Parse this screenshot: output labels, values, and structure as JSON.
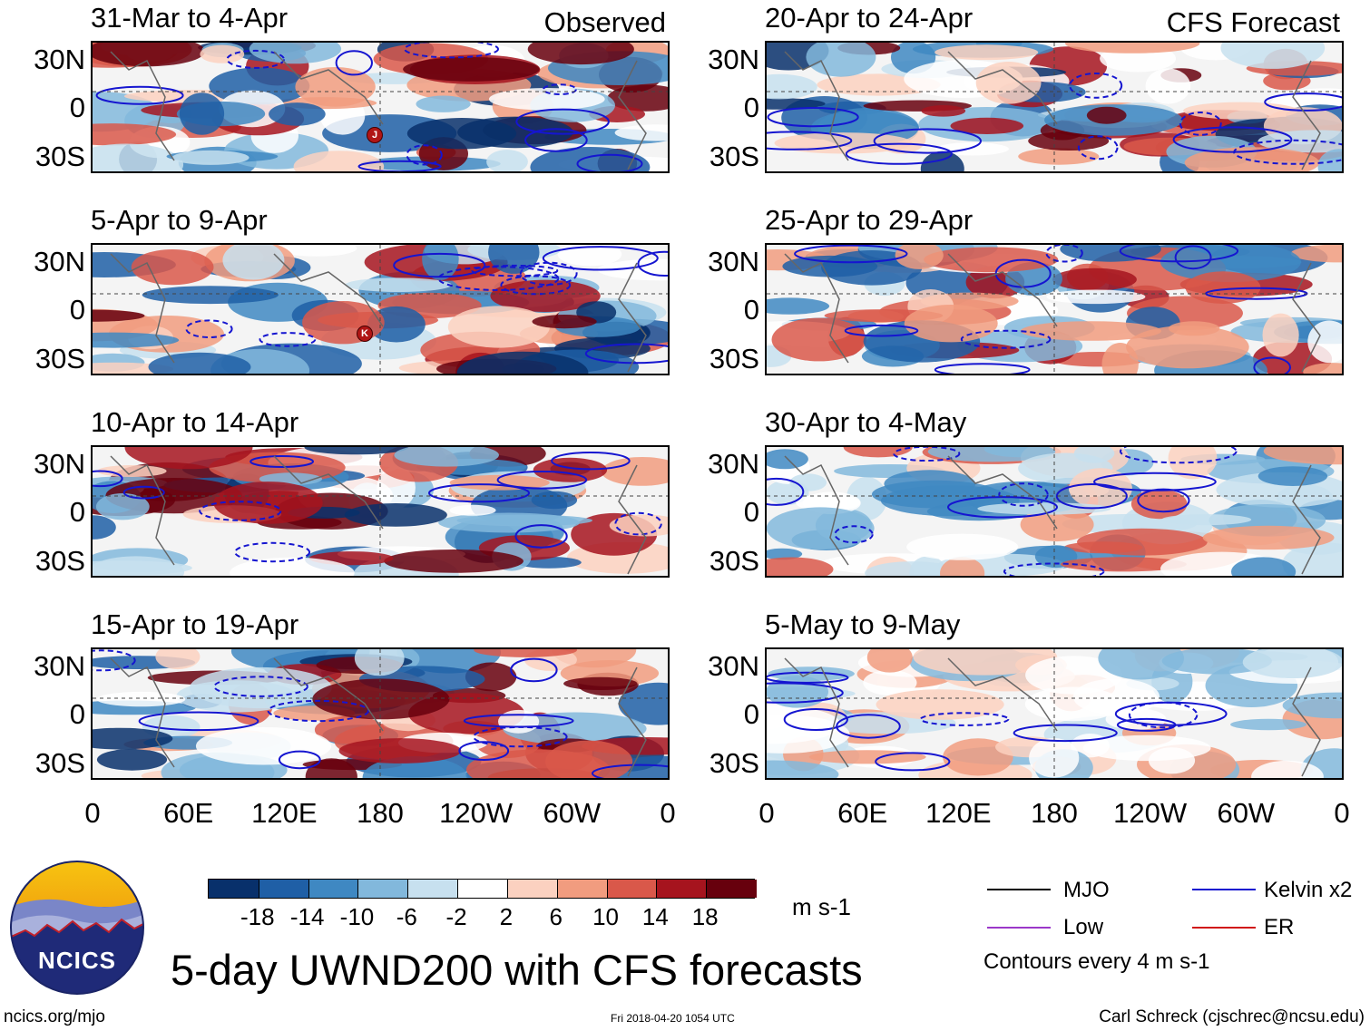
{
  "panels": [
    {
      "title": "31-Mar to 4-Apr",
      "tag": "Observed",
      "seed": 3
    },
    {
      "title": "20-Apr to 24-Apr",
      "tag": "CFS Forecast",
      "seed": 11
    },
    {
      "title": "5-Apr to 9-Apr",
      "tag": "",
      "seed": 5
    },
    {
      "title": "25-Apr to 29-Apr",
      "tag": "",
      "seed": 13
    },
    {
      "title": "10-Apr to 14-Apr",
      "tag": "",
      "seed": 7
    },
    {
      "title": "30-Apr to 4-May",
      "tag": "",
      "seed": 17
    },
    {
      "title": "15-Apr to 19-Apr",
      "tag": "",
      "seed": 9
    },
    {
      "title": "5-May to 9-May",
      "tag": "",
      "seed": 19
    }
  ],
  "storm_labels": {
    "p0": "J",
    "p2": "K"
  },
  "lat_labels": [
    "30N",
    "0",
    "30S"
  ],
  "lon_labels": [
    "0",
    "60E",
    "120E",
    "180",
    "120W",
    "60W",
    "0"
  ],
  "colorbar": {
    "labels": [
      "-18",
      "-14",
      "-10",
      "-6",
      "-2",
      "2",
      "6",
      "10",
      "14",
      "18"
    ],
    "colors": [
      "#08306b",
      "#1f5fa6",
      "#3f88c2",
      "#82b8dc",
      "#c7e0ef",
      "#ffffff",
      "#fbd1c0",
      "#f19c7f",
      "#d9584a",
      "#a6141e",
      "#67000d"
    ],
    "units": "m s-1"
  },
  "legend": {
    "items": [
      {
        "label": "MJO",
        "color": "#000000"
      },
      {
        "label": "Kelvin x2",
        "color": "#1515d0"
      },
      {
        "label": "Low",
        "color": "#9b38c9"
      },
      {
        "label": "ER",
        "color": "#d01515"
      }
    ],
    "note": "Contours every 4 m s-1"
  },
  "logo": {
    "text": "NCICS"
  },
  "main_title": "5-day UWND200 with CFS forecasts",
  "footer": {
    "url": "ncics.org/mjo",
    "timestamp": "Fri 2018-04-20 1054 UTC",
    "credit": "Carl Schreck (cjschrec@ncsu.edu)"
  }
}
